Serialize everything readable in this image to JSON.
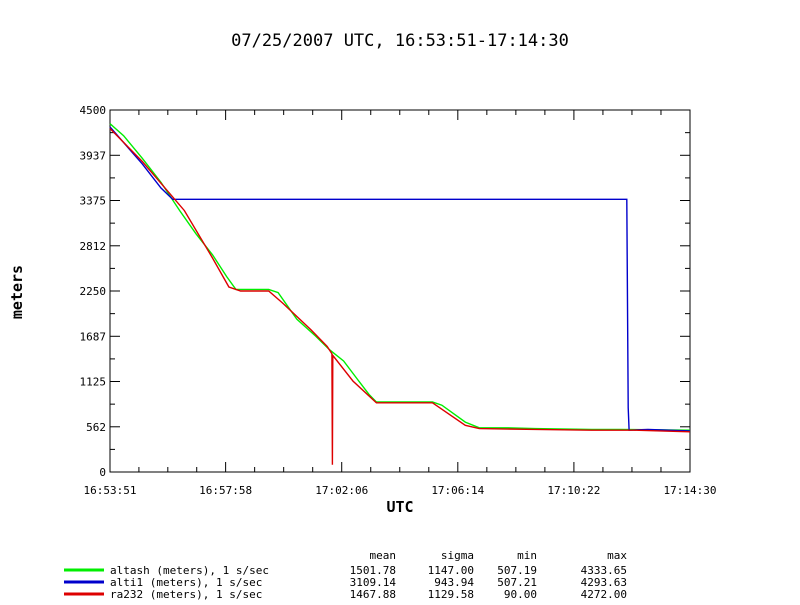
{
  "chart_data": {
    "type": "line",
    "title": "07/25/2007  UTC, 16:53:51-17:14:30",
    "xlabel": "UTC",
    "ylabel": "meters",
    "ylim": [
      0,
      4500
    ],
    "x_tick_labels": [
      "16:53:51",
      "16:57:58",
      "17:02:06",
      "17:06:14",
      "17:10:22",
      "17:14:30"
    ],
    "y_tick_labels": [
      "0",
      "562",
      "1125",
      "1687",
      "2250",
      "2812",
      "3375",
      "3937",
      "4500"
    ],
    "y_tick_values": [
      0,
      562,
      1125,
      1687,
      2250,
      2812,
      3375,
      3937,
      4500
    ],
    "stats_headers": [
      "mean",
      "sigma",
      "min",
      "max"
    ],
    "series": [
      {
        "name": "altash (meters), 1 s/sec",
        "color": "#00ee00",
        "stats": [
          "1501.78",
          "1147.00",
          "507.19",
          "4333.65"
        ],
        "points": [
          [
            "16:53:51",
            4330
          ],
          [
            "16:54:20",
            4180
          ],
          [
            "16:55:00",
            3900
          ],
          [
            "16:55:40",
            3600
          ],
          [
            "16:56:20",
            3250
          ],
          [
            "16:56:55",
            2960
          ],
          [
            "16:57:30",
            2700
          ],
          [
            "16:58:00",
            2430
          ],
          [
            "16:58:20",
            2270
          ],
          [
            "16:59:30",
            2270
          ],
          [
            "16:59:50",
            2230
          ],
          [
            "17:00:30",
            1900
          ],
          [
            "17:01:10",
            1690
          ],
          [
            "17:01:40",
            1520
          ],
          [
            "17:02:10",
            1380
          ],
          [
            "17:02:40",
            1150
          ],
          [
            "17:03:05",
            960
          ],
          [
            "17:03:20",
            870
          ],
          [
            "17:05:20",
            870
          ],
          [
            "17:05:40",
            830
          ],
          [
            "17:06:30",
            620
          ],
          [
            "17:07:00",
            550
          ],
          [
            "17:08:00",
            550
          ],
          [
            "17:09:00",
            540
          ],
          [
            "17:11:00",
            530
          ],
          [
            "17:12:00",
            530
          ],
          [
            "17:14:30",
            520
          ]
        ]
      },
      {
        "name": "alti1 (meters), 1 s/sec",
        "color": "#0000cc",
        "stats": [
          "3109.14",
          "943.94",
          "507.21",
          "4293.63"
        ],
        "points": [
          [
            "16:53:51",
            4290
          ],
          [
            "16:55:00",
            3830
          ],
          [
            "16:55:40",
            3530
          ],
          [
            "16:56:05",
            3390
          ],
          [
            "17:12:15",
            3390
          ],
          [
            "17:12:18",
            800
          ],
          [
            "17:12:20",
            520
          ],
          [
            "17:13:00",
            530
          ],
          [
            "17:14:30",
            510
          ]
        ]
      },
      {
        "name": "ra232 (meters), 1 s/sec",
        "color": "#dd0000",
        "stats": [
          "1467.88",
          "1129.58",
          "90.00",
          "4272.00"
        ],
        "points": [
          [
            "16:53:51",
            4270
          ],
          [
            "16:55:00",
            3860
          ],
          [
            "16:56:30",
            3250
          ],
          [
            "16:57:30",
            2660
          ],
          [
            "16:58:05",
            2300
          ],
          [
            "16:58:30",
            2250
          ],
          [
            "16:59:30",
            2250
          ],
          [
            "17:00:00",
            2100
          ],
          [
            "17:01:00",
            1770
          ],
          [
            "17:01:35",
            1560
          ],
          [
            "17:01:45",
            1470
          ],
          [
            "17:01:46",
            90
          ],
          [
            "17:01:47",
            1450
          ],
          [
            "17:02:30",
            1130
          ],
          [
            "17:03:20",
            860
          ],
          [
            "17:05:20",
            860
          ],
          [
            "17:06:30",
            580
          ],
          [
            "17:07:00",
            540
          ],
          [
            "17:09:00",
            530
          ],
          [
            "17:11:00",
            520
          ],
          [
            "17:12:30",
            520
          ],
          [
            "17:14:30",
            500
          ]
        ]
      }
    ]
  }
}
